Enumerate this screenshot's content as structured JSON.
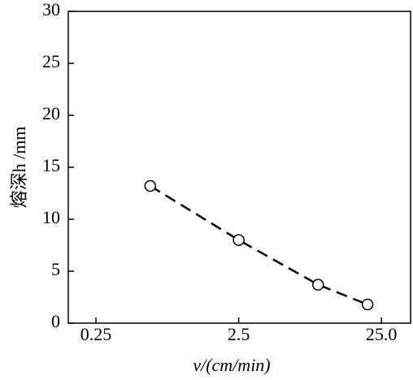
{
  "chart_data": {
    "type": "line",
    "x_label": "v/(cm/min)",
    "y_label": "熔深h /mm",
    "x": [
      0.6,
      2.5,
      9,
      20
    ],
    "series": [
      {
        "values": [
          13.2,
          8.0,
          3.7,
          1.8
        ],
        "color": "#000000"
      }
    ],
    "xlim": [
      0.16,
      40
    ],
    "xscale": "log",
    "xticks": [
      0.25,
      2.5,
      {
        "value": 25,
        "label": "25.0"
      }
    ],
    "ylim": [
      0,
      30
    ],
    "yticks": [
      0,
      5,
      10,
      15,
      20,
      25,
      30
    ],
    "grid": false
  }
}
